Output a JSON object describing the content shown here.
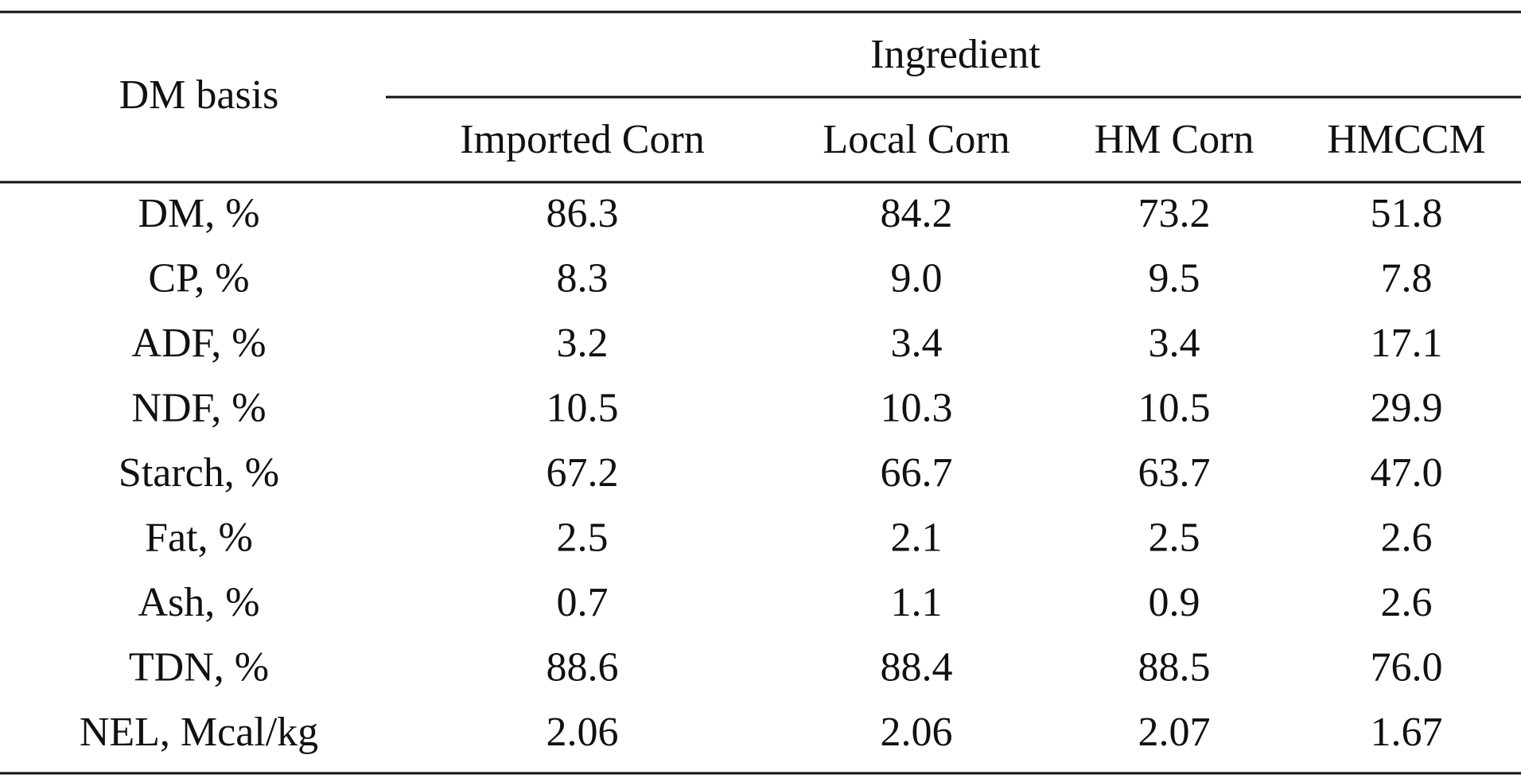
{
  "table": {
    "header": {
      "row_label": "DM basis",
      "group": "Ingredient",
      "columns": [
        "Imported Corn",
        "Local Corn",
        "HM Corn",
        "HMCCM"
      ]
    },
    "rows": [
      [
        "DM, %",
        "86.3",
        "84.2",
        "73.2",
        "51.8"
      ],
      [
        "CP, %",
        "8.3",
        "9.0",
        "9.5",
        "7.8"
      ],
      [
        "ADF, %",
        "3.2",
        "3.4",
        "3.4",
        "17.1"
      ],
      [
        "NDF, %",
        "10.5",
        "10.3",
        "10.5",
        "29.9"
      ],
      [
        "Starch, %",
        "67.2",
        "66.7",
        "63.7",
        "47.0"
      ],
      [
        "Fat, %",
        "2.5",
        "2.1",
        "2.5",
        "2.6"
      ],
      [
        "Ash, %",
        "0.7",
        "1.1",
        "0.9",
        "2.6"
      ],
      [
        "TDN, %",
        "88.6",
        "88.4",
        "88.5",
        "76.0"
      ],
      [
        "NEL, Mcal/kg",
        "2.06",
        "2.06",
        "2.07",
        "1.67"
      ]
    ]
  }
}
